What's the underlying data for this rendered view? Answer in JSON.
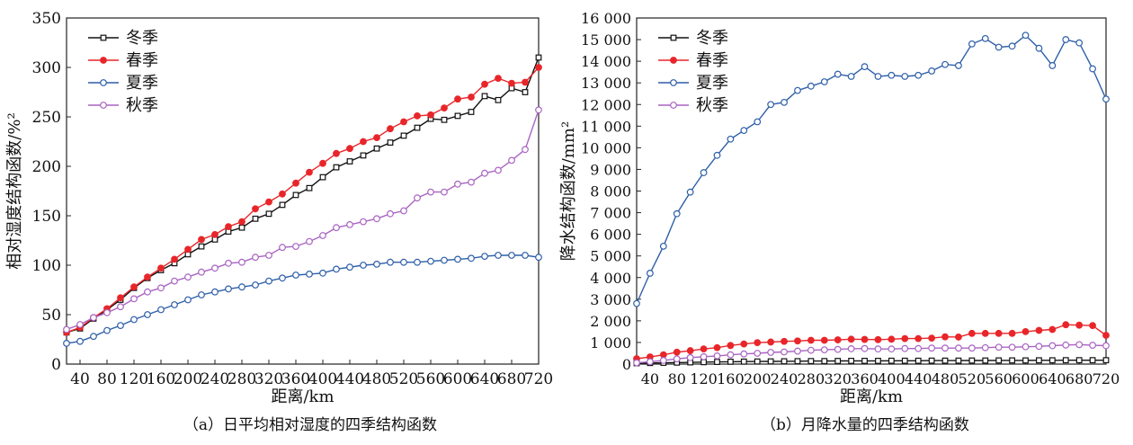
{
  "chart_data": [
    {
      "type": "line",
      "caption": "（a）日平均相对湿度的四季结构函数",
      "xlabel": "距离/km",
      "ylabel": "相对湿度结构函数/%²",
      "xlim": [
        20,
        720
      ],
      "ylim": [
        0,
        350
      ],
      "x_ticks": [
        40,
        80,
        120,
        160,
        200,
        240,
        280,
        320,
        360,
        400,
        440,
        480,
        520,
        560,
        600,
        640,
        680,
        720
      ],
      "y_ticks": [
        0,
        50,
        100,
        150,
        200,
        250,
        300,
        350
      ],
      "y_tick_labels": [
        "0",
        "50",
        "100",
        "150",
        "200",
        "250",
        "300",
        "350"
      ],
      "legend_position": "top-left",
      "x": [
        20,
        40,
        60,
        80,
        100,
        120,
        140,
        160,
        180,
        200,
        220,
        240,
        260,
        280,
        300,
        320,
        340,
        360,
        380,
        400,
        420,
        440,
        460,
        480,
        500,
        520,
        540,
        560,
        580,
        600,
        620,
        640,
        660,
        680,
        700,
        720
      ],
      "series": [
        {
          "name": "冬季",
          "color": "#111111",
          "marker": "square",
          "values": [
            32,
            36,
            46,
            55,
            65,
            77,
            87,
            95,
            102,
            111,
            119,
            126,
            134,
            138,
            147,
            152,
            161,
            171,
            178,
            189,
            199,
            205,
            211,
            218,
            224,
            231,
            239,
            248,
            247,
            251,
            255,
            271,
            267,
            279,
            275,
            310
          ]
        },
        {
          "name": "春季",
          "color": "#e8262a",
          "marker": "circle",
          "values": [
            32,
            37,
            47,
            56,
            67,
            78,
            88,
            97,
            106,
            116,
            126,
            131,
            139,
            144,
            157,
            164,
            172,
            183,
            194,
            203,
            213,
            218,
            225,
            229,
            238,
            245,
            251,
            252,
            259,
            268,
            270,
            283,
            289,
            284,
            285,
            300
          ]
        },
        {
          "name": "夏季",
          "color": "#2e5fa8",
          "marker": "circle",
          "values": [
            21,
            23,
            28,
            34,
            39,
            45,
            50,
            55,
            60,
            65,
            70,
            73,
            76,
            78,
            80,
            84,
            87,
            90,
            91,
            92,
            96,
            98,
            100,
            101,
            103,
            103,
            103,
            104,
            105,
            106,
            107,
            109,
            110,
            110,
            110,
            108
          ]
        },
        {
          "name": "秋季",
          "color": "#a964c2",
          "marker": "circle",
          "values": [
            35,
            40,
            47,
            52,
            58,
            66,
            73,
            77,
            84,
            88,
            93,
            97,
            102,
            103,
            108,
            110,
            118,
            119,
            124,
            130,
            138,
            141,
            144,
            147,
            152,
            155,
            168,
            174,
            174,
            182,
            184,
            193,
            196,
            206,
            217,
            257
          ]
        }
      ]
    },
    {
      "type": "line",
      "caption": "（b）月降水量的四季结构函数",
      "xlabel": "距离/km",
      "ylabel": "降水结构函数/mm²",
      "xlim": [
        20,
        720
      ],
      "ylim": [
        0,
        16000
      ],
      "x_ticks": [
        40,
        80,
        120,
        160,
        200,
        240,
        280,
        320,
        360,
        400,
        440,
        480,
        520,
        560,
        600,
        640,
        680,
        720
      ],
      "y_ticks": [
        0,
        1000,
        2000,
        3000,
        4000,
        5000,
        6000,
        7000,
        8000,
        9000,
        10000,
        11000,
        12000,
        13000,
        14000,
        15000,
        16000
      ],
      "y_tick_labels": [
        "0",
        "1 000",
        "2 000",
        "3 000",
        "4 000",
        "5 000",
        "6 000",
        "7 000",
        "8 000",
        "9 000",
        "10 000",
        "11 000",
        "12 000",
        "13 000",
        "14 000",
        "15 000",
        "16 000"
      ],
      "legend_position": "top-left",
      "x": [
        20,
        40,
        60,
        80,
        100,
        120,
        140,
        160,
        180,
        200,
        220,
        240,
        260,
        280,
        300,
        320,
        340,
        360,
        380,
        400,
        420,
        440,
        460,
        480,
        500,
        520,
        540,
        560,
        580,
        600,
        620,
        640,
        660,
        680,
        700,
        720
      ],
      "series": [
        {
          "name": "冬季",
          "color": "#111111",
          "marker": "square",
          "values": [
            40,
            50,
            60,
            70,
            80,
            90,
            100,
            110,
            115,
            120,
            125,
            130,
            135,
            140,
            140,
            145,
            150,
            150,
            150,
            155,
            155,
            155,
            160,
            160,
            160,
            165,
            165,
            170,
            170,
            170,
            175,
            175,
            180,
            180,
            180,
            180
          ]
        },
        {
          "name": "春季",
          "color": "#e8262a",
          "marker": "circle",
          "values": [
            250,
            330,
            430,
            550,
            620,
            700,
            760,
            860,
            930,
            990,
            1020,
            1050,
            1070,
            1100,
            1100,
            1120,
            1150,
            1140,
            1130,
            1150,
            1180,
            1180,
            1200,
            1260,
            1250,
            1420,
            1420,
            1420,
            1420,
            1500,
            1560,
            1600,
            1820,
            1800,
            1780,
            1330
          ]
        },
        {
          "name": "夏季",
          "color": "#2e5fa8",
          "marker": "circle",
          "values": [
            2800,
            4200,
            5450,
            6950,
            7950,
            8850,
            9650,
            10400,
            10800,
            11200,
            12000,
            12100,
            12650,
            12850,
            13050,
            13400,
            13300,
            13750,
            13300,
            13350,
            13300,
            13350,
            13550,
            13850,
            13800,
            14800,
            15050,
            14650,
            14700,
            15200,
            14600,
            13800,
            15000,
            14850,
            13650,
            12250
          ]
        },
        {
          "name": "秋季",
          "color": "#a964c2",
          "marker": "circle",
          "values": [
            60,
            110,
            170,
            240,
            300,
            340,
            380,
            430,
            470,
            500,
            540,
            560,
            600,
            640,
            660,
            680,
            710,
            720,
            700,
            700,
            720,
            720,
            740,
            740,
            740,
            740,
            760,
            780,
            780,
            800,
            820,
            850,
            880,
            900,
            870,
            850
          ]
        }
      ]
    }
  ]
}
